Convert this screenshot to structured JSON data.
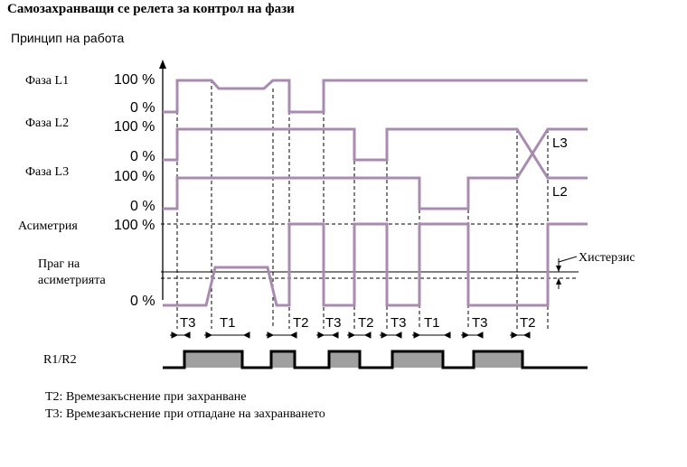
{
  "title": "Самозахранващи се релета за контрол на фази",
  "subtitle": "Принцип на работа",
  "rows": {
    "l1": "Фаза L1",
    "l2": "Фаза L2",
    "l3": "Фаза L3",
    "asym": "Асиметрия",
    "threshold_line1": "Праг на",
    "threshold_line2": "асиметрията",
    "relay": "R1/R2"
  },
  "levels": {
    "high": "100 %",
    "low": "0 %"
  },
  "crossover_labels": {
    "l3": "L3",
    "l2": "L2"
  },
  "hysteresis": "Хистерзис",
  "timers": [
    "T3",
    "T1",
    "T2",
    "T3",
    "T2",
    "T3",
    "T1",
    "T3",
    "T2"
  ],
  "legend": {
    "t2": "T2: Времезакъснение при захранване",
    "t3": "T3: Времезакъснение при отпадане на захранването"
  },
  "colors": {
    "signal": "#a98bb1",
    "relay_fill": "#a0a0a0",
    "axis": "#000000"
  }
}
